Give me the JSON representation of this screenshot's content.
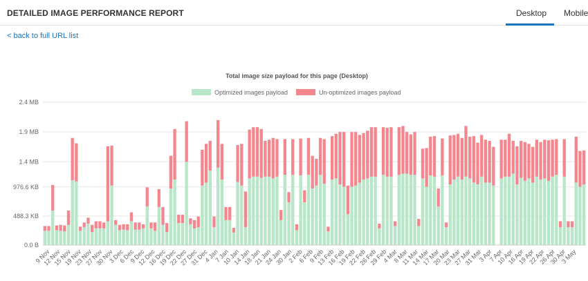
{
  "header": {
    "title": "DETAILED IMAGE PERFORMANCE REPORT",
    "tabs": [
      {
        "label": "Desktop",
        "active": true
      },
      {
        "label": "Mobile",
        "active": false
      }
    ]
  },
  "nav": {
    "back_link": "< back to full URL list"
  },
  "colors": {
    "optimized": "#b8e6c8",
    "unoptimized": "#f4868e",
    "accent": "#1e73be",
    "grid": "#e6e6e6"
  },
  "chart_data": {
    "type": "bar",
    "stacked": true,
    "title": "Total image size payload for this page (Desktop)",
    "legend_position": "top",
    "grid": true,
    "units": "MB",
    "ylim": [
      0,
      2.4
    ],
    "y_ticks": [
      "0.0 B",
      "488.3 KB",
      "976.6 KB",
      "1.4 MB",
      "1.9 MB",
      "2.4 MB"
    ],
    "y_tick_values": [
      0,
      0.4883,
      0.9766,
      1.4,
      1.9,
      2.4
    ],
    "x_tick_labels": [
      "9 Nov",
      "12 Nov",
      "15 Nov",
      "19 Nov",
      "23 Nov",
      "27 Nov",
      "30 Nov",
      "3 Dec",
      "6 Dec",
      "9 Dec",
      "12 Dec",
      "16 Dec",
      "19 Dec",
      "22 Dec",
      "27 Dec",
      "31 Dec",
      "4 Jan",
      "7 Jan",
      "10 Jan",
      "14 Jan",
      "18 Jan",
      "21 Jan",
      "24 Jan",
      "30 Jan",
      "2 Feb",
      "6 Feb",
      "9 Feb",
      "13 Feb",
      "16 Feb",
      "19 Feb",
      "22 Feb",
      "26 Feb",
      "29 Feb",
      "4 Mar",
      "8 Mar",
      "11 Mar",
      "14 Mar",
      "17 Mar",
      "20 Mar",
      "23 Mar",
      "27 Mar",
      "31 Mar",
      "3 Apr",
      "7 Apr",
      "10 Apr",
      "16 Apr",
      "19 Apr",
      "22 Apr",
      "26 Apr",
      "30 Apr",
      "3 May"
    ],
    "series": [
      {
        "name": "Optimized images payload",
        "values": [
          0.24,
          0.24,
          0.58,
          0.25,
          0.24,
          0.23,
          0.34,
          1.09,
          1.07,
          0.24,
          0.3,
          0.36,
          0.22,
          0.28,
          0.28,
          0.28,
          0.4,
          1.0,
          0.34,
          0.25,
          0.26,
          0.25,
          0.4,
          0.26,
          0.26,
          0.28,
          0.65,
          0.28,
          0.24,
          0.64,
          0.34,
          0.22,
          0.95,
          1.1,
          0.37,
          0.37,
          1.4,
          0.35,
          0.28,
          0.3,
          1.0,
          1.05,
          1.25,
          0.3,
          1.3,
          1.1,
          0.42,
          0.42,
          0.21,
          1.06,
          1.0,
          0.3,
          1.12,
          1.15,
          1.15,
          1.13,
          1.15,
          1.15,
          1.12,
          1.15,
          0.42,
          1.18,
          0.72,
          1.18,
          0.25,
          1.17,
          0.72,
          1.18,
          0.95,
          1.0,
          1.18,
          1.03,
          0.23,
          1.1,
          1.12,
          1.02,
          0.98,
          0.52,
          0.98,
          1.0,
          1.05,
          1.1,
          1.12,
          1.15,
          1.15,
          0.28,
          1.18,
          1.15,
          1.15,
          0.32,
          1.18,
          1.2,
          1.2,
          1.18,
          1.18,
          0.32,
          1.12,
          0.98,
          1.17,
          1.15,
          0.65,
          1.17,
          0.3,
          1.02,
          1.1,
          1.15,
          1.1,
          1.15,
          1.12,
          1.05,
          1.02,
          1.15,
          1.05,
          1.05,
          1.0,
          0.0,
          1.12,
          1.15,
          1.15,
          1.2,
          1.02,
          1.13,
          1.08,
          1.12,
          1.05,
          1.15,
          1.1,
          1.12,
          1.08,
          1.15,
          1.18,
          0.3,
          1.15,
          0.3,
          0.3,
          1.05,
          0.98,
          1.02
        ],
        "color": "#b8e6c8"
      },
      {
        "name": "Un-optimized images payload",
        "values": [
          0.08,
          0.08,
          0.43,
          0.08,
          0.1,
          0.1,
          0.24,
          0.71,
          0.64,
          0.07,
          0.08,
          0.1,
          0.12,
          0.12,
          0.12,
          0.1,
          1.26,
          0.67,
          0.08,
          0.09,
          0.09,
          0.1,
          0.15,
          0.12,
          0.12,
          0.07,
          0.32,
          0.1,
          0.14,
          0.3,
          0.3,
          0.15,
          0.55,
          0.85,
          0.14,
          0.14,
          0.68,
          0.1,
          0.14,
          0.18,
          0.6,
          0.65,
          0.5,
          0.18,
          0.8,
          0.6,
          0.22,
          0.22,
          0.08,
          0.62,
          0.7,
          0.6,
          0.82,
          0.83,
          0.83,
          0.82,
          0.6,
          0.62,
          0.68,
          0.63,
          0.17,
          0.6,
          0.17,
          0.6,
          0.1,
          0.62,
          0.2,
          0.62,
          0.55,
          0.45,
          0.62,
          0.75,
          0.08,
          0.73,
          0.75,
          0.88,
          0.92,
          0.48,
          0.92,
          0.9,
          0.8,
          0.78,
          0.8,
          0.83,
          0.83,
          0.08,
          0.8,
          0.82,
          0.83,
          0.08,
          0.8,
          0.8,
          0.7,
          0.68,
          0.72,
          0.12,
          0.5,
          0.65,
          0.65,
          0.68,
          0.3,
          0.62,
          0.08,
          0.82,
          0.75,
          0.72,
          0.7,
          0.85,
          0.7,
          0.78,
          0.7,
          0.7,
          0.72,
          0.7,
          0.65,
          0.0,
          0.65,
          0.62,
          0.72,
          0.55,
          0.64,
          0.62,
          0.65,
          0.58,
          0.6,
          0.62,
          0.63,
          0.65,
          0.68,
          0.62,
          0.6,
          0.1,
          0.63,
          0.1,
          0.1,
          0.77,
          0.6,
          0.57
        ],
        "color": "#f4868e"
      }
    ]
  }
}
